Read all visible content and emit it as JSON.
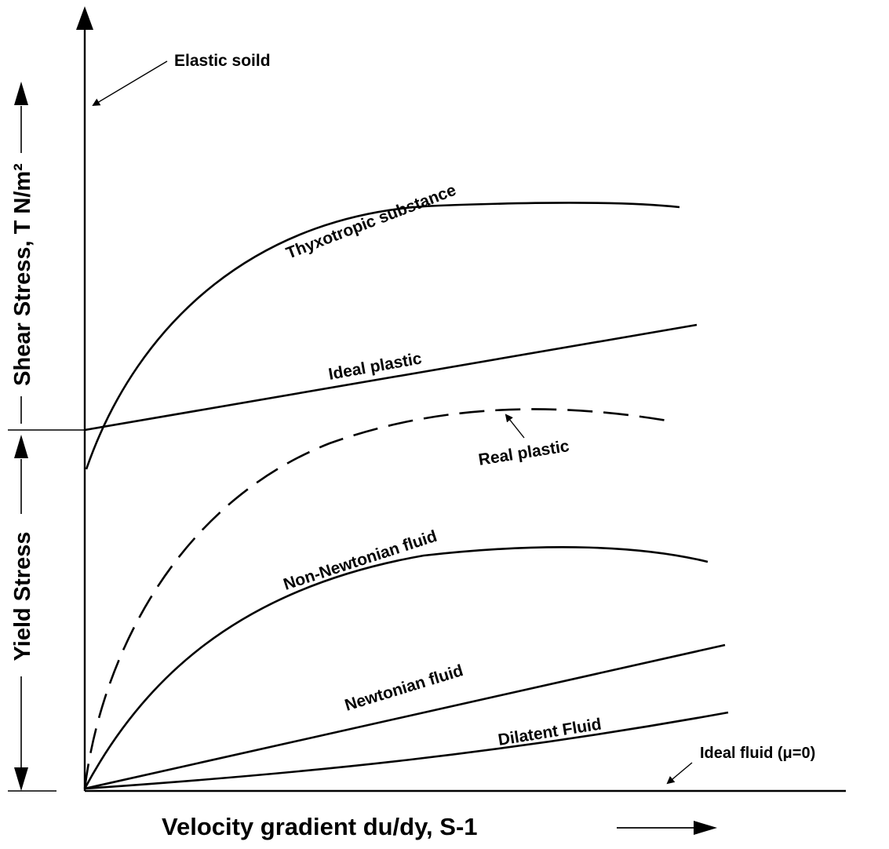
{
  "diagram": {
    "x_axis_label": "Velocity gradient du/dy, S-1",
    "y_axis_label_upper": "Shear Stress, T N/m²",
    "y_axis_label_lower": "Yield Stress",
    "curves": [
      {
        "id": "elastic-solid",
        "label": "Elastic soild"
      },
      {
        "id": "thyxotropic",
        "label": "Thyxotropic substance"
      },
      {
        "id": "ideal-plastic",
        "label": "Ideal plastic"
      },
      {
        "id": "real-plastic",
        "label": "Real plastic"
      },
      {
        "id": "non-newtonian",
        "label": "Non-Newtonian fluid"
      },
      {
        "id": "newtonian",
        "label": "Newtonian fluid"
      },
      {
        "id": "dilatent",
        "label": "Dilatent Fluid"
      },
      {
        "id": "ideal-fluid",
        "label": "Ideal fluid (μ=0)"
      }
    ]
  }
}
